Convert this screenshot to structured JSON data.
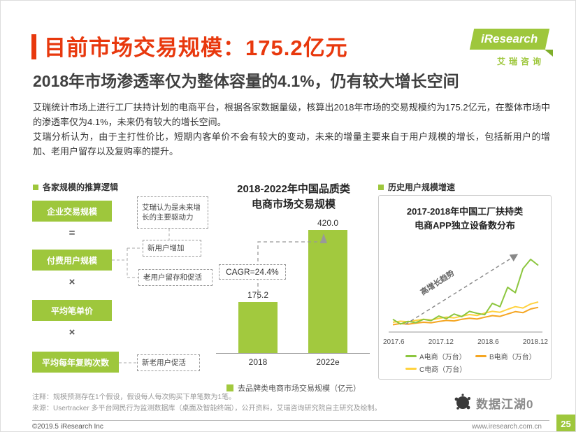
{
  "page": {
    "title": "目前市场交易规模：175.2亿元",
    "subtitle": "2018年市场渗透率仅为整体容量的4.1%，仍有较大增长空间",
    "paragraphs": [
      "艾瑞统计市场上进行工厂扶持计划的电商平台，根据各家数据量级，核算出2018年市场的交易规模约为175.2亿元，在整体市场中的渗透率仅为4.1%，未来仍有较大的增长空间。",
      "艾瑞分析认为，由于主打性价比，短期内客单价不会有较大的变动，未来的增量主要来自于用户规模的增长，包括新用户的增加、老用户留存以及复购率的提升。"
    ]
  },
  "logo": {
    "brand": "iResearch",
    "cn": "艾瑞咨询"
  },
  "colors": {
    "accent_red": "#e8380d",
    "brand_green": "#9ec73c"
  },
  "left_panel": {
    "header": "各家规模的推算逻辑",
    "boxes": [
      "企业交易规模",
      "付费用户规模",
      "平均笔单价",
      "平均每年复购次数"
    ],
    "operators": [
      "=",
      "×",
      "×"
    ],
    "annotations": {
      "driver": "艾瑞认为是未来增长的主要驱动力",
      "new_users": "新用户增加",
      "retention": "老用户留存和促活",
      "repurchase": "新老用户促活"
    }
  },
  "right_panel": {
    "header": "历史用户规模增速"
  },
  "chart_data": [
    {
      "type": "bar",
      "title": "2018-2022年中国品质类电商市场交易规模",
      "title_lines": [
        "2018-2022年中国品质类",
        "电商市场交易规模"
      ],
      "categories": [
        "2018",
        "2022e"
      ],
      "values": [
        175.2,
        420.0
      ],
      "value_labels": [
        "175.2",
        "420.0"
      ],
      "cagr_label": "CAGR=24.4%",
      "legend": "去品牌类电商市场交易规模（亿元）",
      "bar_color": "#a2c93e",
      "ylabel": "",
      "xlabel": "",
      "ylim": [
        0,
        450
      ],
      "grid": false
    },
    {
      "type": "line",
      "title": "2017-2018年中国工厂扶持类电商APP独立设备数分布",
      "title_lines": [
        "2017-2018年中国工厂扶持类",
        "电商APP独立设备数分布"
      ],
      "x_ticks": [
        "2017.6",
        "2017.12",
        "2018.6",
        "2018.12"
      ],
      "annotation": "高增长趋势",
      "ylim": [
        0,
        650
      ],
      "grid": false,
      "legend_position": "bottom",
      "series": [
        {
          "name": "A电商（万台）",
          "color": "#8cc63f",
          "values": [
            90,
            55,
            75,
            65,
            90,
            80,
            115,
            95,
            130,
            110,
            150,
            135,
            125,
            210,
            185,
            330,
            290,
            470,
            540,
            495
          ]
        },
        {
          "name": "B电商（万台）",
          "color": "#f5a623",
          "values": [
            50,
            58,
            54,
            62,
            68,
            64,
            74,
            82,
            78,
            90,
            98,
            92,
            106,
            118,
            112,
            130,
            148,
            140,
            168,
            180
          ]
        },
        {
          "name": "C电商（万台）",
          "color": "#ffd23f",
          "values": [
            68,
            76,
            72,
            82,
            90,
            85,
            97,
            107,
            101,
            114,
            126,
            119,
            137,
            150,
            143,
            165,
            185,
            175,
            205,
            220
          ]
        }
      ]
    }
  ],
  "notes": [
    "注释：规模预测存在1个假设，假设每人每次购买下单笔数为1笔。",
    "来源：Usertracker 多平台网民行为监测数据库（桌面及智能终端），公开资料，艾瑞咨询研究院自主研究及绘制。"
  ],
  "watermark": {
    "text": "数据江湖0"
  },
  "footer": {
    "copyright": "©2019.5 iResearch Inc",
    "website": "www.iresearch.com.cn",
    "page": "25"
  }
}
